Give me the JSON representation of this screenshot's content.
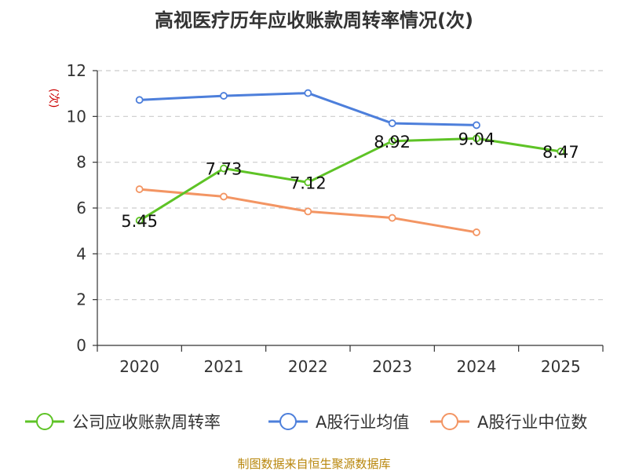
{
  "chart_data": {
    "type": "line",
    "title": "高视医疗历年应收账款周转率情况(次)",
    "ylabel": "(次)",
    "xlabel": "",
    "categories": [
      "2020",
      "2021",
      "2022",
      "2023",
      "2024",
      "2025"
    ],
    "ylim": [
      0,
      12
    ],
    "yticks": [
      0,
      2,
      4,
      6,
      8,
      10,
      12
    ],
    "grid": "horizontal-dashed",
    "legend_position": "bottom",
    "series": [
      {
        "name": "公司应收账款周转率",
        "color": "#5ec326",
        "values": [
          5.45,
          7.73,
          7.12,
          8.92,
          9.04,
          8.47
        ],
        "labels": [
          "5.45",
          "7.73",
          "7.12",
          "8.92",
          "9.04",
          "8.47"
        ]
      },
      {
        "name": "A股行业均值",
        "color": "#4d7fdb",
        "values": [
          10.72,
          10.9,
          11.02,
          9.7,
          9.62,
          null
        ]
      },
      {
        "name": "A股行业中位数",
        "color": "#f39563",
        "values": [
          6.82,
          6.5,
          5.85,
          5.57,
          4.94,
          null
        ]
      }
    ]
  },
  "source": "制图数据来自恒生聚源数据库"
}
